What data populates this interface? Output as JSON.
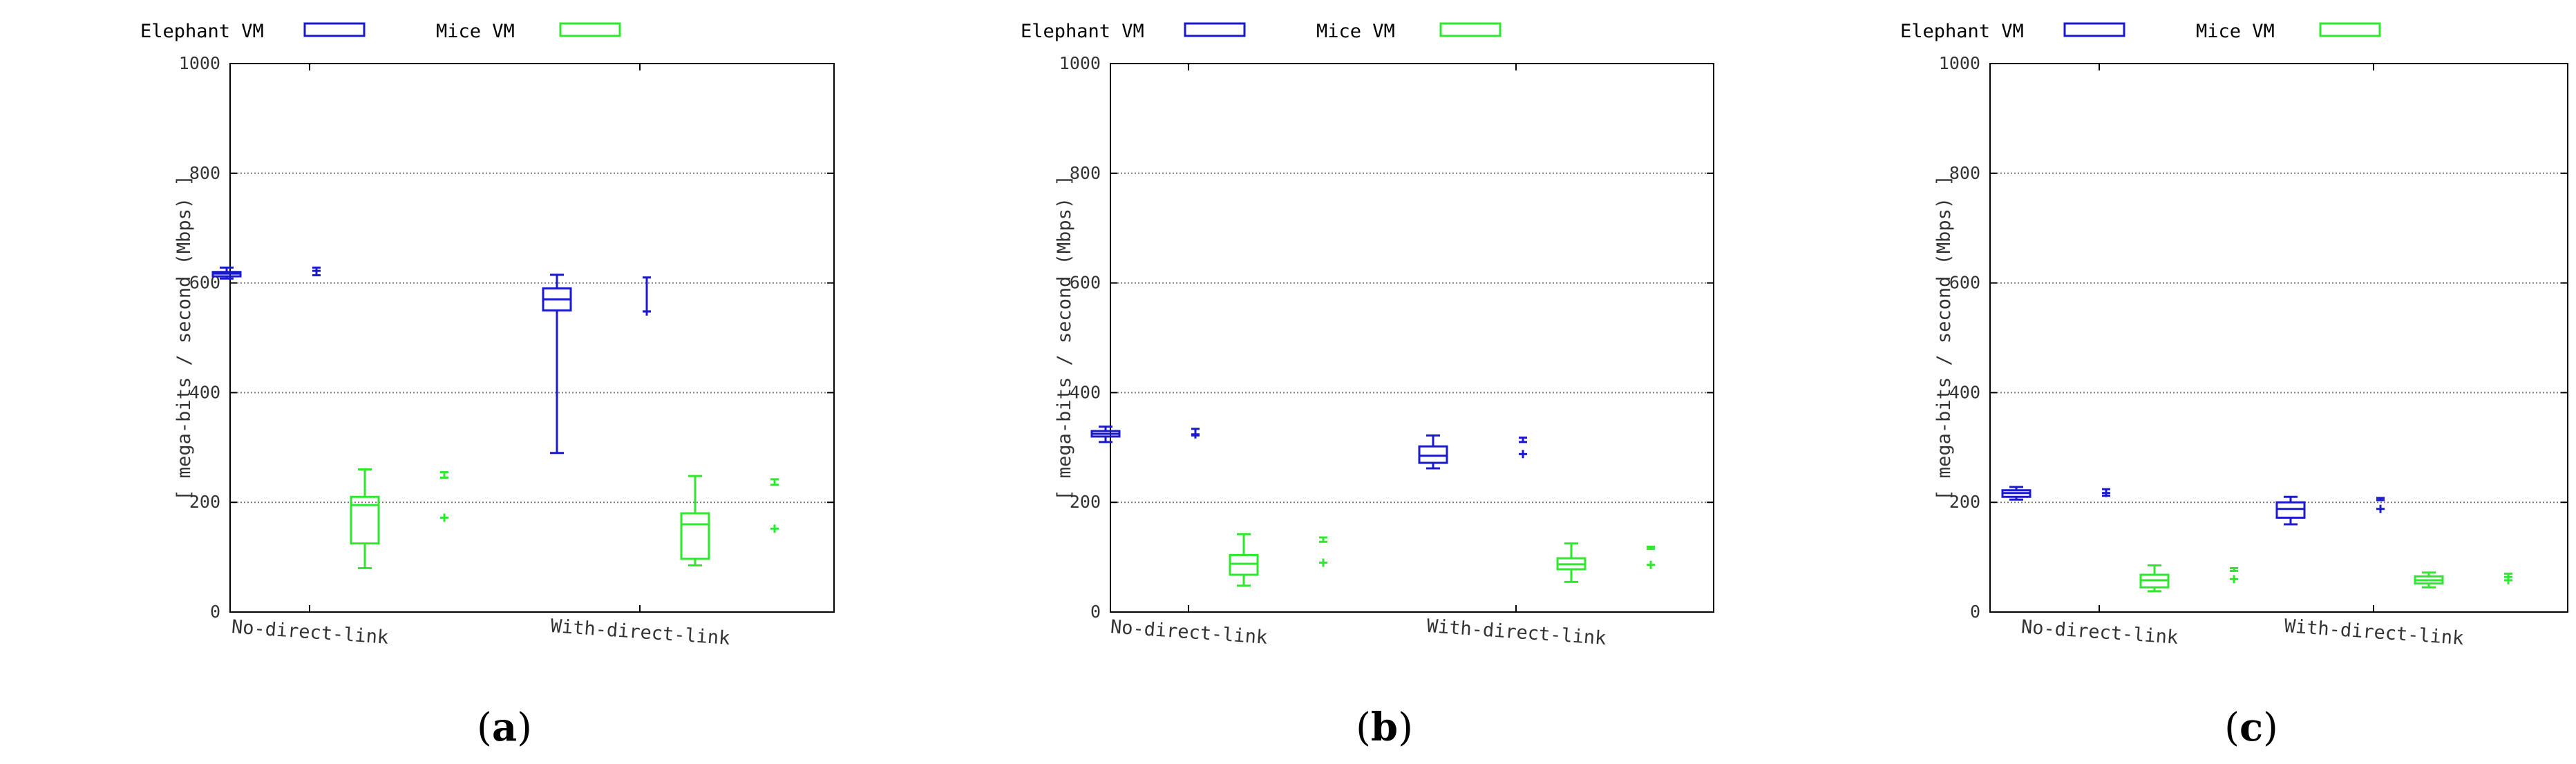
{
  "legend_labels": {
    "elephant": "Elephant VM",
    "mice": "Mice VM"
  },
  "colors": {
    "elephant": "#1a1acc",
    "mice": "#2ee82e",
    "grid": "#7a7a7a",
    "axis": "#000000"
  },
  "chart_data": [
    {
      "type": "box",
      "panel_label": "(a)",
      "ylabel": "[ mega-bits / second (Mbps) ]",
      "ylim": [
        0,
        1000
      ],
      "yticks": [
        0,
        200,
        400,
        600,
        800,
        1000
      ],
      "categories": [
        "No-direct-link",
        "With-direct-link"
      ],
      "legend_position": "top-left",
      "grid": true,
      "series": [
        {
          "name": "Elephant VM",
          "boxes": [
            {
              "min": 608,
              "q1": 612,
              "median": 617,
              "q3": 620,
              "max": 628,
              "mean": 622,
              "mean_low": 614,
              "mean_high": 628
            },
            {
              "min": 290,
              "q1": 550,
              "median": 570,
              "q3": 590,
              "max": 615,
              "mean": 548,
              "mean_low": 548,
              "mean_high": 610
            }
          ]
        },
        {
          "name": "Mice VM",
          "boxes": [
            {
              "min": 80,
              "q1": 125,
              "median": 195,
              "q3": 210,
              "max": 260,
              "mean": 172,
              "mean_low": 245,
              "mean_high": 255
            },
            {
              "min": 85,
              "q1": 97,
              "median": 160,
              "q3": 180,
              "max": 248,
              "mean": 152,
              "mean_low": 232,
              "mean_high": 242
            }
          ]
        }
      ]
    },
    {
      "type": "box",
      "panel_label": "(b)",
      "ylabel": "[ mega-bits / second (Mbps) ]",
      "ylim": [
        0,
        1000
      ],
      "yticks": [
        0,
        200,
        400,
        600,
        800,
        1000
      ],
      "categories": [
        "No-direct-link",
        "With-direct-link"
      ],
      "legend_position": "top-left",
      "grid": true,
      "series": [
        {
          "name": "Elephant VM",
          "boxes": [
            {
              "min": 310,
              "q1": 320,
              "median": 325,
              "q3": 330,
              "max": 338,
              "mean": 324,
              "mean_low": 322,
              "mean_high": 334
            },
            {
              "min": 262,
              "q1": 272,
              "median": 285,
              "q3": 302,
              "max": 322,
              "mean": 288,
              "mean_low": 310,
              "mean_high": 318
            }
          ]
        },
        {
          "name": "Mice VM",
          "boxes": [
            {
              "min": 48,
              "q1": 68,
              "median": 88,
              "q3": 104,
              "max": 142,
              "mean": 90,
              "mean_low": 128,
              "mean_high": 136
            },
            {
              "min": 55,
              "q1": 78,
              "median": 87,
              "q3": 98,
              "max": 125,
              "mean": 86,
              "mean_low": 115,
              "mean_high": 119
            }
          ]
        }
      ]
    },
    {
      "type": "box",
      "panel_label": "(c)",
      "ylabel": "[ mega-bits / second (Mbps) ]",
      "ylim": [
        0,
        1000
      ],
      "yticks": [
        0,
        200,
        400,
        600,
        800,
        1000
      ],
      "categories": [
        "No-direct-link",
        "With-direct-link"
      ],
      "legend_position": "top-left",
      "grid": true,
      "series": [
        {
          "name": "Elephant VM",
          "boxes": [
            {
              "min": 205,
              "q1": 210,
              "median": 217,
              "q3": 222,
              "max": 228,
              "mean": 217,
              "mean_low": 212,
              "mean_high": 224
            },
            {
              "min": 160,
              "q1": 172,
              "median": 188,
              "q3": 200,
              "max": 210,
              "mean": 188,
              "mean_low": 204,
              "mean_high": 208
            }
          ]
        },
        {
          "name": "Mice VM",
          "boxes": [
            {
              "min": 38,
              "q1": 45,
              "median": 58,
              "q3": 68,
              "max": 85,
              "mean": 60,
              "mean_low": 75,
              "mean_high": 80
            },
            {
              "min": 45,
              "q1": 52,
              "median": 58,
              "q3": 65,
              "max": 72,
              "mean": 58,
              "mean_low": 64,
              "mean_high": 70
            }
          ]
        }
      ]
    }
  ]
}
